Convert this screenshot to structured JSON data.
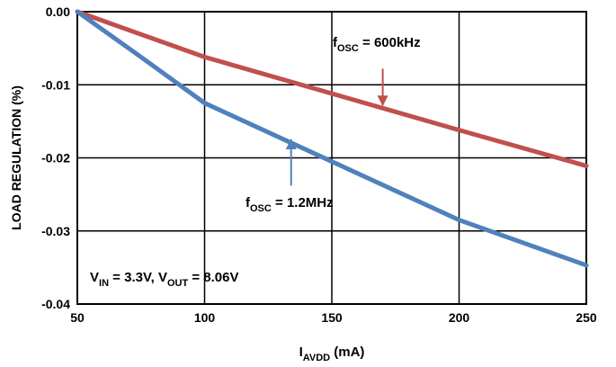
{
  "chart_data": {
    "type": "line",
    "title": "",
    "xlabel": {
      "main": "I",
      "sub": "AVDD",
      "suffix": " (mA)"
    },
    "ylabel": "LOAD REGULATION (%)",
    "xlim": [
      50,
      250
    ],
    "ylim": [
      -0.04,
      0.0
    ],
    "xticks": [
      50,
      100,
      150,
      200,
      250
    ],
    "xtick_labels": [
      "50",
      "100",
      "150",
      "200",
      "250"
    ],
    "yticks": [
      0.0,
      -0.01,
      -0.02,
      -0.03,
      -0.04
    ],
    "ytick_labels": [
      "0.00",
      "-0.01",
      "-0.02",
      "-0.03",
      "-0.04"
    ],
    "grid": true,
    "series": [
      {
        "color": "#c0504d",
        "x": [
          50,
          100,
          150,
          200,
          250
        ],
        "y": [
          0.0,
          -0.0062,
          -0.0112,
          -0.0162,
          -0.0211
        ]
      },
      {
        "color": "#4f81bd",
        "x": [
          50,
          75,
          100,
          150,
          200,
          250
        ],
        "y": [
          0.0,
          -0.0062,
          -0.0125,
          -0.0205,
          -0.0285,
          -0.0347
        ]
      }
    ],
    "annotations": [
      {
        "id": "fosc-600",
        "main": "f",
        "sub": "OSC",
        "suffix": " = 600kHz",
        "arrow_color": "#c0504d",
        "arrow_tip": [
          170,
          -0.0128
        ],
        "arrow_tail": [
          170,
          -0.0078
        ]
      },
      {
        "id": "fosc-1_2",
        "main": "f",
        "sub": "OSC",
        "suffix": " = 1.2MHz",
        "arrow_color": "#4f81bd",
        "arrow_tip": [
          134,
          -0.0175
        ],
        "arrow_tail": [
          134,
          -0.0238
        ]
      },
      {
        "id": "conditions",
        "parts": [
          {
            "main": "V",
            "sub": "IN",
            "suffix": " = 3.3V, "
          },
          {
            "main": "V",
            "sub": "OUT",
            "suffix": " = 8.06V"
          }
        ]
      }
    ]
  }
}
